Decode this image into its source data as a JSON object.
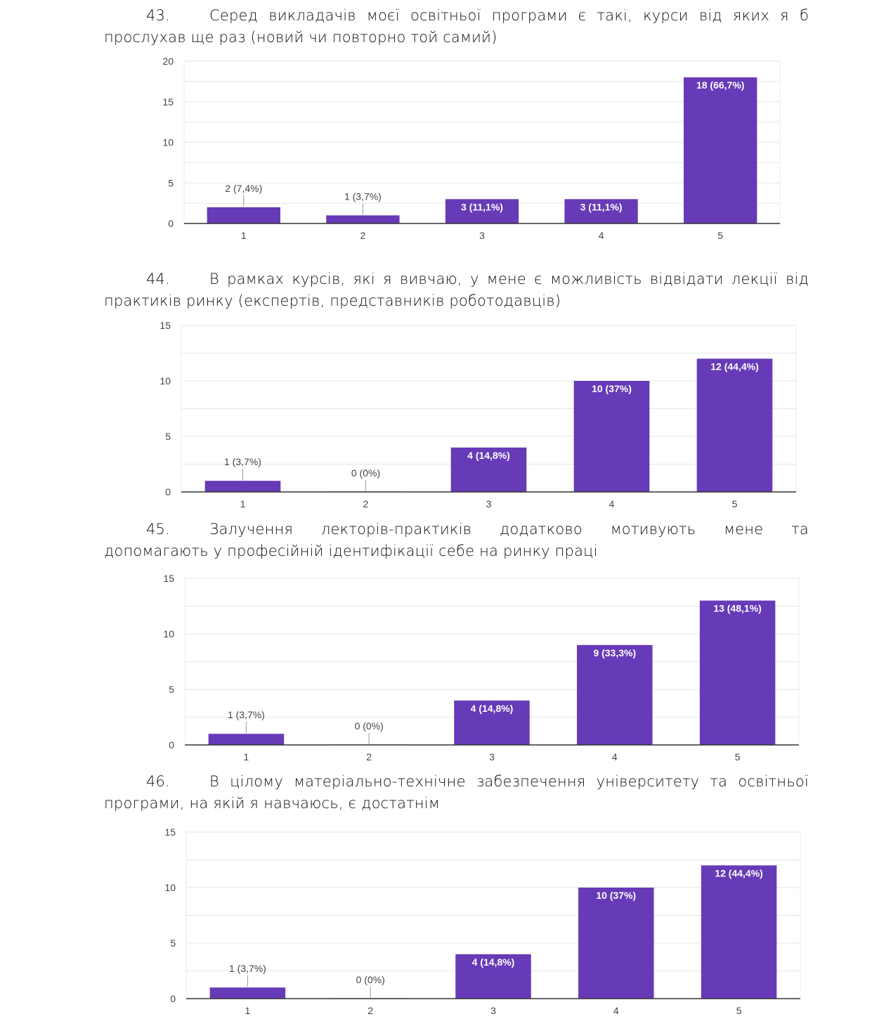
{
  "document": {
    "questions": [
      {
        "number": "43.",
        "line1": "Серед викладачів моєї освітньої програми є такі, курси від яких я б",
        "line2": "прослухав ще раз (новий чи повторно той самий)"
      },
      {
        "number": "44.",
        "line1": "В рамках курсів, які я вивчаю, у мене є можливість відвідати лекції від",
        "line2": "практиків ринку (експертів, представників роботодавців)"
      },
      {
        "number": "45.",
        "line1": "Залучення лекторів-практиків додатково мотивують мене та",
        "line2": "допомагають у професійній ідентифікації себе на ринку праці"
      },
      {
        "number": "46.",
        "line1": "В цілому матеріально-технічне забезпечення університету та освітньої",
        "line2": "програми, на якій я навчаюсь, є достатнім"
      }
    ]
  },
  "colors": {
    "bar": "#673ab7",
    "gridline": "#e6e6e6",
    "axis": "#333333"
  },
  "chart_data": [
    {
      "type": "bar",
      "title": "43. Серед викладачів моєї освітньої програми є такі, курси від яких я б прослухав ще раз (новий чи повторно той самий)",
      "categories": [
        "1",
        "2",
        "3",
        "4",
        "5"
      ],
      "values": [
        2,
        1,
        3,
        3,
        18
      ],
      "data_labels": [
        "2 (7,4%)",
        "1 (3,7%)",
        "3 (11,1%)",
        "3 (11,1%)",
        "18 (66,7%)"
      ],
      "yticks": [
        "0",
        "5",
        "10",
        "15",
        "20"
      ],
      "ylim": [
        0,
        20
      ],
      "xlabel": "",
      "ylabel": "",
      "grid": true,
      "legend": "none"
    },
    {
      "type": "bar",
      "title": "44. В рамках курсів, які я вивчаю, у мене є можливість відвідати лекції від практиків ринку (експертів, представників роботодавців)",
      "categories": [
        "1",
        "2",
        "3",
        "4",
        "5"
      ],
      "values": [
        1,
        0,
        4,
        10,
        12
      ],
      "data_labels": [
        "1 (3,7%)",
        "0 (0%)",
        "4 (14,8%)",
        "10 (37%)",
        "12 (44,4%)"
      ],
      "yticks": [
        "0",
        "5",
        "10",
        "15"
      ],
      "ylim": [
        0,
        15
      ],
      "xlabel": "",
      "ylabel": "",
      "grid": true,
      "legend": "none"
    },
    {
      "type": "bar",
      "title": "45. Залучення лекторів-практиків додатково мотивують мене та допомагають у професійній ідентифікації себе на ринку праці",
      "categories": [
        "1",
        "2",
        "3",
        "4",
        "5"
      ],
      "values": [
        1,
        0,
        4,
        9,
        13
      ],
      "data_labels": [
        "1 (3,7%)",
        "0 (0%)",
        "4 (14,8%)",
        "9 (33,3%)",
        "13 (48,1%)"
      ],
      "yticks": [
        "0",
        "5",
        "10",
        "15"
      ],
      "ylim": [
        0,
        15
      ],
      "xlabel": "",
      "ylabel": "",
      "grid": true,
      "legend": "none"
    },
    {
      "type": "bar",
      "title": "46. В цілому матеріально-технічне забезпечення університету та освітньої програми, на якій я навчаюсь, є достатнім",
      "categories": [
        "1",
        "2",
        "3",
        "4",
        "5"
      ],
      "values": [
        1,
        0,
        4,
        10,
        12
      ],
      "data_labels": [
        "1 (3,7%)",
        "0 (0%)",
        "4 (14,8%)",
        "10 (37%)",
        "12 (44,4%)"
      ],
      "yticks": [
        "0",
        "5",
        "10",
        "15"
      ],
      "ylim": [
        0,
        15
      ],
      "xlabel": "",
      "ylabel": "",
      "grid": true,
      "legend": "none"
    }
  ]
}
